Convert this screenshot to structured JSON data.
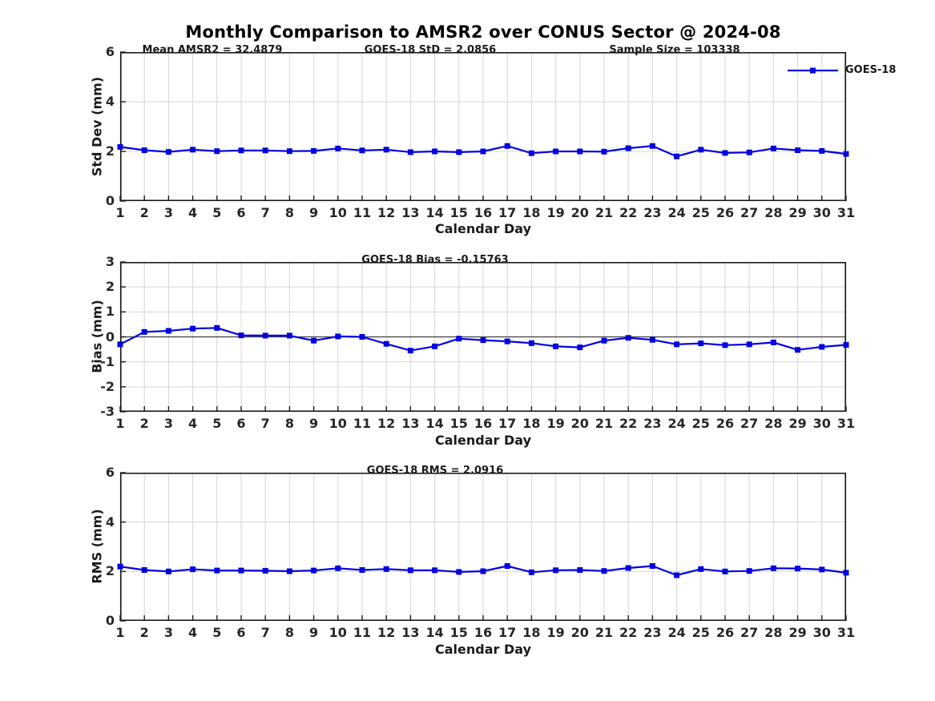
{
  "title": "Monthly Comparison to AMSR2 over CONUS Sector @ 2024-08",
  "xlabel": "Calendar Day",
  "legend": {
    "label": "GOES-18",
    "color": "#0000e0"
  },
  "colors": {
    "line": "#0000e0",
    "grid": "#d6d6d6",
    "axis": "#1a1a1a",
    "zero_line": "#3f3f3f",
    "background": "#ffffff"
  },
  "chart_data": [
    {
      "type": "line",
      "name": "std-dev",
      "annotations": [
        "Mean AMSR2 = 32.4879",
        "GOES-18 StD = 2.0856",
        "Sample Size = 103338"
      ],
      "ylabel": "Std Dev (mm)",
      "xlabel": "Calendar Day",
      "ylim": [
        0,
        6
      ],
      "yticks": [
        0,
        2,
        4,
        6
      ],
      "xlim": [
        1,
        31
      ],
      "grid": true,
      "legend_position": "northeast",
      "x": [
        1,
        2,
        3,
        4,
        5,
        6,
        7,
        8,
        9,
        10,
        11,
        12,
        13,
        14,
        15,
        16,
        17,
        18,
        19,
        20,
        21,
        22,
        23,
        24,
        25,
        26,
        27,
        28,
        29,
        30,
        31
      ],
      "series": [
        {
          "name": "GOES-18",
          "color": "#0000e0",
          "marker": "square",
          "values": [
            2.18,
            2.05,
            1.98,
            2.07,
            2.01,
            2.04,
            2.04,
            2.01,
            2.02,
            2.12,
            2.04,
            2.07,
            1.97,
            2.0,
            1.97,
            2.0,
            2.22,
            1.93,
            2.0,
            2.0,
            1.99,
            2.13,
            2.22,
            1.8,
            2.07,
            1.94,
            1.96,
            2.12,
            2.05,
            2.02,
            1.9
          ]
        }
      ]
    },
    {
      "type": "line",
      "name": "bias",
      "subtitle": "GOES-18 Bias = -0.15763",
      "ylabel": "Bias (mm)",
      "xlabel": "Calendar Day",
      "ylim": [
        -3,
        3
      ],
      "yticks": [
        -3,
        -2,
        -1,
        0,
        1,
        2,
        3
      ],
      "xlim": [
        1,
        31
      ],
      "grid": true,
      "zero_line": true,
      "x": [
        1,
        2,
        3,
        4,
        5,
        6,
        7,
        8,
        9,
        10,
        11,
        12,
        13,
        14,
        15,
        16,
        17,
        18,
        19,
        20,
        21,
        22,
        23,
        24,
        25,
        26,
        27,
        28,
        29,
        30,
        31
      ],
      "series": [
        {
          "name": "GOES-18",
          "color": "#0000e0",
          "marker": "square",
          "values": [
            -0.3,
            0.2,
            0.24,
            0.33,
            0.36,
            0.06,
            0.05,
            0.05,
            -0.15,
            0.02,
            0.0,
            -0.28,
            -0.55,
            -0.38,
            -0.07,
            -0.13,
            -0.18,
            -0.25,
            -0.38,
            -0.42,
            -0.15,
            -0.04,
            -0.12,
            -0.3,
            -0.26,
            -0.33,
            -0.3,
            -0.22,
            -0.52,
            -0.4,
            -0.32
          ]
        }
      ]
    },
    {
      "type": "line",
      "name": "rms",
      "subtitle": "GOES-18 RMS = 2.0916",
      "ylabel": "RMS (mm)",
      "xlabel": "Calendar Day",
      "ylim": [
        0,
        6
      ],
      "yticks": [
        0,
        2,
        4,
        6
      ],
      "xlim": [
        1,
        31
      ],
      "grid": true,
      "x": [
        1,
        2,
        3,
        4,
        5,
        6,
        7,
        8,
        9,
        10,
        11,
        12,
        13,
        14,
        15,
        16,
        17,
        18,
        19,
        20,
        21,
        22,
        23,
        24,
        25,
        26,
        27,
        28,
        29,
        30,
        31
      ],
      "series": [
        {
          "name": "GOES-18",
          "color": "#0000e0",
          "marker": "square",
          "values": [
            2.2,
            2.06,
            2.0,
            2.09,
            2.04,
            2.04,
            2.03,
            2.01,
            2.04,
            2.13,
            2.06,
            2.1,
            2.05,
            2.05,
            1.98,
            2.01,
            2.22,
            1.97,
            2.05,
            2.06,
            2.02,
            2.14,
            2.22,
            1.85,
            2.1,
            2.0,
            2.02,
            2.13,
            2.12,
            2.08,
            1.95
          ]
        }
      ]
    }
  ]
}
